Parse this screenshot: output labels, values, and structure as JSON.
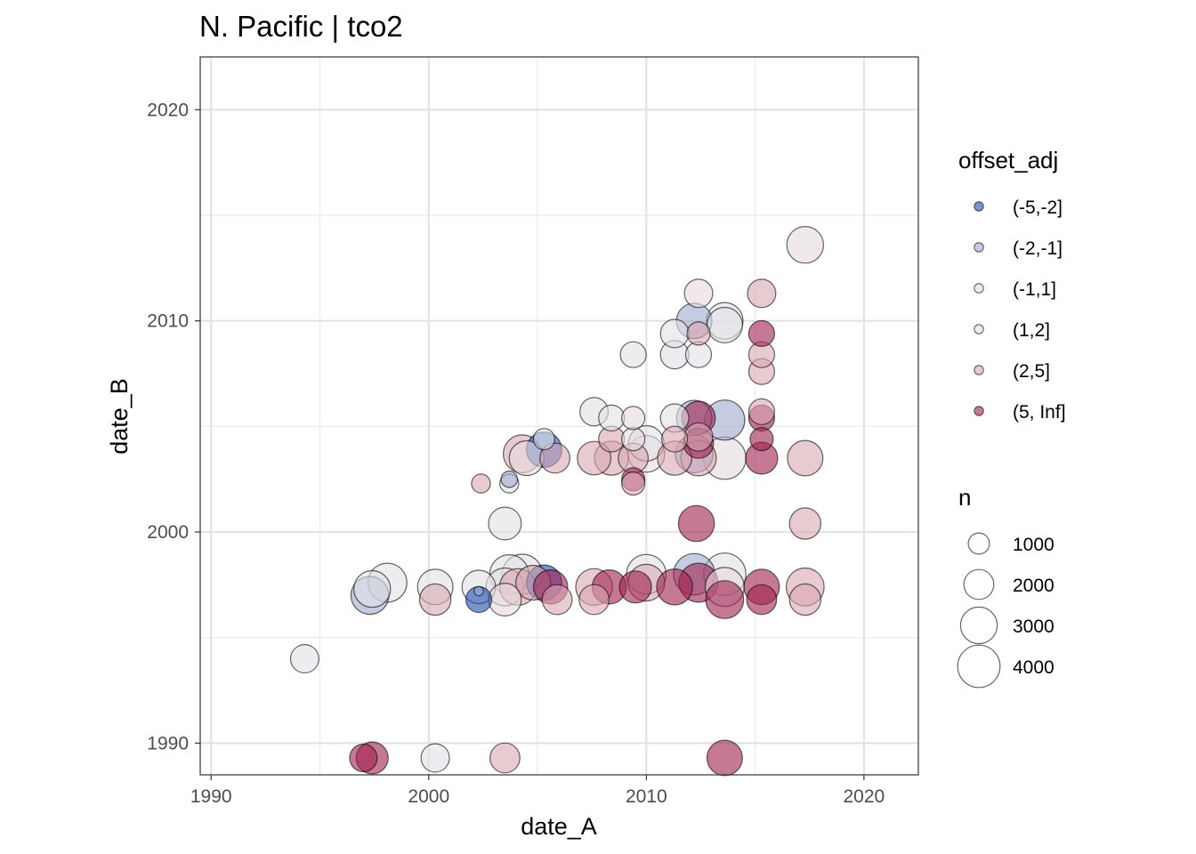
{
  "chart_data": {
    "type": "scatter",
    "title": "N. Pacific | tco2",
    "xlabel": "date_A",
    "ylabel": "date_B",
    "xlim": [
      1989.5,
      2022.5
    ],
    "ylim": [
      1988.5,
      2022.5
    ],
    "x_ticks": [
      1990,
      2000,
      2010,
      2020
    ],
    "y_ticks": [
      1990,
      2000,
      2010,
      2020
    ],
    "x_tick_labels": [
      "1990",
      "2000",
      "2010",
      "2020"
    ],
    "y_tick_labels": [
      "1990",
      "2000",
      "2010",
      "2020"
    ],
    "grid": true,
    "legend_color": {
      "title": "offset_adj",
      "position": "right",
      "items": [
        {
          "label": "(-5,-2]",
          "color": "#1f4fb0"
        },
        {
          "label": "(-2,-1]",
          "color": "#9ea8cc"
        },
        {
          "label": "(-1,1]",
          "color": "#e1e1e6"
        },
        {
          "label": "(1,2]",
          "color": "#e6dadd"
        },
        {
          "label": "(2,5]",
          "color": "#d9a6b3"
        },
        {
          "label": "(5, Inf]",
          "color": "#a0204f"
        }
      ]
    },
    "legend_size": {
      "title": "n",
      "position": "right",
      "items": [
        {
          "label": "1000",
          "value": 1000
        },
        {
          "label": "2000",
          "value": 2000
        },
        {
          "label": "3000",
          "value": 3000
        },
        {
          "label": "4000",
          "value": 4000
        }
      ]
    },
    "points": [
      {
        "x": 1994.3,
        "y": 1994.0,
        "n": 1800,
        "bin": "(-1,1]"
      },
      {
        "x": 1997.0,
        "y": 1989.3,
        "n": 1700,
        "bin": "(5, Inf]"
      },
      {
        "x": 1997.4,
        "y": 1989.3,
        "n": 2300,
        "bin": "(5, Inf]"
      },
      {
        "x": 2000.3,
        "y": 1989.3,
        "n": 1800,
        "bin": "(-1,1]"
      },
      {
        "x": 2003.5,
        "y": 1989.3,
        "n": 2000,
        "bin": "(2,5]"
      },
      {
        "x": 2013.6,
        "y": 1989.3,
        "n": 2800,
        "bin": "(5, Inf]"
      },
      {
        "x": 1997.3,
        "y": 1997.0,
        "n": 3200,
        "bin": "(-2,-1]"
      },
      {
        "x": 1997.4,
        "y": 1997.3,
        "n": 3000,
        "bin": "(-1,1]"
      },
      {
        "x": 1998.1,
        "y": 1997.6,
        "n": 3400,
        "bin": "(-1,1]"
      },
      {
        "x": 2000.3,
        "y": 1996.8,
        "n": 2200,
        "bin": "(2,5]"
      },
      {
        "x": 2000.3,
        "y": 1997.4,
        "n": 2800,
        "bin": "(-1,1]"
      },
      {
        "x": 2002.3,
        "y": 1996.8,
        "n": 1500,
        "bin": "(-5,-2]"
      },
      {
        "x": 2002.3,
        "y": 1997.2,
        "n": 200,
        "bin": "(-2,-1]"
      },
      {
        "x": 2002.3,
        "y": 1997.4,
        "n": 2500,
        "bin": "(-1,1]"
      },
      {
        "x": 2003.5,
        "y": 1996.8,
        "n": 2400,
        "bin": "(1,2]"
      },
      {
        "x": 2003.5,
        "y": 1997.4,
        "n": 3200,
        "bin": "(1,2]"
      },
      {
        "x": 2003.7,
        "y": 1998.0,
        "n": 3400,
        "bin": "(-1,1]"
      },
      {
        "x": 2004.1,
        "y": 1997.4,
        "n": 3000,
        "bin": "(2,5]"
      },
      {
        "x": 2004.3,
        "y": 1998.0,
        "n": 3600,
        "bin": "(-1,1]"
      },
      {
        "x": 2004.8,
        "y": 1997.6,
        "n": 2700,
        "bin": "(2,5]"
      },
      {
        "x": 2005.3,
        "y": 1997.6,
        "n": 2800,
        "bin": "(-5,-2]"
      },
      {
        "x": 2005.6,
        "y": 1997.4,
        "n": 2600,
        "bin": "(5, Inf]"
      },
      {
        "x": 2005.9,
        "y": 1996.8,
        "n": 2000,
        "bin": "(2,5]"
      },
      {
        "x": 2007.6,
        "y": 1996.8,
        "n": 2000,
        "bin": "(2,5]"
      },
      {
        "x": 2007.6,
        "y": 1997.4,
        "n": 3000,
        "bin": "(2,5]"
      },
      {
        "x": 2008.3,
        "y": 1997.4,
        "n": 2600,
        "bin": "(5, Inf]"
      },
      {
        "x": 2009.5,
        "y": 1997.4,
        "n": 2300,
        "bin": "(5, Inf]"
      },
      {
        "x": 2010.0,
        "y": 1997.6,
        "n": 3000,
        "bin": "(2,5]"
      },
      {
        "x": 2010.0,
        "y": 1998.0,
        "n": 3500,
        "bin": "(-1,1]"
      },
      {
        "x": 2011.3,
        "y": 1997.4,
        "n": 2900,
        "bin": "(5, Inf]"
      },
      {
        "x": 2012.2,
        "y": 1998.0,
        "n": 3800,
        "bin": "(-2,-1]"
      },
      {
        "x": 2012.4,
        "y": 1997.6,
        "n": 3400,
        "bin": "(5, Inf]"
      },
      {
        "x": 2013.6,
        "y": 1998.0,
        "n": 4000,
        "bin": "(-1,1]"
      },
      {
        "x": 2013.6,
        "y": 1997.4,
        "n": 3400,
        "bin": "(1,2]"
      },
      {
        "x": 2013.6,
        "y": 1996.8,
        "n": 3200,
        "bin": "(5, Inf]"
      },
      {
        "x": 2015.3,
        "y": 1996.8,
        "n": 2000,
        "bin": "(5, Inf]"
      },
      {
        "x": 2015.3,
        "y": 1997.4,
        "n": 2800,
        "bin": "(5, Inf]"
      },
      {
        "x": 2017.3,
        "y": 1996.8,
        "n": 2200,
        "bin": "(2,5]"
      },
      {
        "x": 2017.3,
        "y": 1997.4,
        "n": 3200,
        "bin": "(2,5]"
      },
      {
        "x": 2003.5,
        "y": 2000.4,
        "n": 2400,
        "bin": "(-1,1]"
      },
      {
        "x": 2012.3,
        "y": 2000.4,
        "n": 2900,
        "bin": "(5, Inf]"
      },
      {
        "x": 2017.3,
        "y": 2000.4,
        "n": 2200,
        "bin": "(2,5]"
      },
      {
        "x": 2002.4,
        "y": 2002.3,
        "n": 800,
        "bin": "(2,5]"
      },
      {
        "x": 2003.7,
        "y": 2002.5,
        "n": 600,
        "bin": "(-2,-1]"
      },
      {
        "x": 2003.7,
        "y": 2002.3,
        "n": 800,
        "bin": "(-1,1]"
      },
      {
        "x": 2004.3,
        "y": 2003.7,
        "n": 3200,
        "bin": "(2,5]"
      },
      {
        "x": 2004.5,
        "y": 2003.5,
        "n": 2700,
        "bin": "(1,2]"
      },
      {
        "x": 2005.3,
        "y": 2003.9,
        "n": 2800,
        "bin": "(-5,-2]"
      },
      {
        "x": 2005.3,
        "y": 2004.4,
        "n": 1000,
        "bin": "(-1,1]"
      },
      {
        "x": 2005.8,
        "y": 2003.5,
        "n": 2000,
        "bin": "(2,5]"
      },
      {
        "x": 2007.6,
        "y": 2003.5,
        "n": 2500,
        "bin": "(2,5]"
      },
      {
        "x": 2008.4,
        "y": 2003.5,
        "n": 2600,
        "bin": "(2,5]"
      },
      {
        "x": 2008.4,
        "y": 2004.4,
        "n": 1500,
        "bin": "(2,5]"
      },
      {
        "x": 2009.4,
        "y": 2004.4,
        "n": 1200,
        "bin": "(1,2]"
      },
      {
        "x": 2009.4,
        "y": 2003.5,
        "n": 2000,
        "bin": "(2,5]"
      },
      {
        "x": 2009.4,
        "y": 2002.5,
        "n": 1200,
        "bin": "(5, Inf]"
      },
      {
        "x": 2009.4,
        "y": 2002.3,
        "n": 1200,
        "bin": "(2,5]"
      },
      {
        "x": 2010.0,
        "y": 2003.7,
        "n": 3000,
        "bin": "(1,2]"
      },
      {
        "x": 2010.0,
        "y": 2004.2,
        "n": 2800,
        "bin": "(-1,1]"
      },
      {
        "x": 2011.3,
        "y": 2003.5,
        "n": 2600,
        "bin": "(2,5]"
      },
      {
        "x": 2011.3,
        "y": 2004.4,
        "n": 1500,
        "bin": "(2,5]"
      },
      {
        "x": 2012.2,
        "y": 2003.7,
        "n": 3200,
        "bin": "(-2,-1]"
      },
      {
        "x": 2012.4,
        "y": 2004.2,
        "n": 2000,
        "bin": "(5, Inf]"
      },
      {
        "x": 2012.4,
        "y": 2004.5,
        "n": 1800,
        "bin": "(2,5]"
      },
      {
        "x": 2012.4,
        "y": 2003.5,
        "n": 2800,
        "bin": "(2,5]"
      },
      {
        "x": 2012.2,
        "y": 2005.4,
        "n": 2800,
        "bin": "(-2,-1]"
      },
      {
        "x": 2012.4,
        "y": 2005.4,
        "n": 2500,
        "bin": "(5, Inf]"
      },
      {
        "x": 2013.6,
        "y": 2005.3,
        "n": 3600,
        "bin": "(-2,-1]"
      },
      {
        "x": 2013.6,
        "y": 2003.5,
        "n": 4000,
        "bin": "(1,2]"
      },
      {
        "x": 2015.3,
        "y": 2003.5,
        "n": 2300,
        "bin": "(5, Inf]"
      },
      {
        "x": 2015.3,
        "y": 2004.4,
        "n": 1200,
        "bin": "(5, Inf]"
      },
      {
        "x": 2015.3,
        "y": 2005.4,
        "n": 1500,
        "bin": "(5, Inf]"
      },
      {
        "x": 2015.3,
        "y": 2005.7,
        "n": 1500,
        "bin": "(2,5]"
      },
      {
        "x": 2017.3,
        "y": 2003.5,
        "n": 2800,
        "bin": "(2,5]"
      },
      {
        "x": 2007.6,
        "y": 2005.7,
        "n": 1800,
        "bin": "(-1,1]"
      },
      {
        "x": 2008.4,
        "y": 2005.4,
        "n": 1500,
        "bin": "(-1,1]"
      },
      {
        "x": 2009.4,
        "y": 2005.4,
        "n": 1200,
        "bin": "(1,2]"
      },
      {
        "x": 2011.3,
        "y": 2005.4,
        "n": 1800,
        "bin": "(-1,1]"
      },
      {
        "x": 2009.4,
        "y": 2008.4,
        "n": 1500,
        "bin": "(-1,1]"
      },
      {
        "x": 2011.3,
        "y": 2008.4,
        "n": 1800,
        "bin": "(-1,1]"
      },
      {
        "x": 2012.4,
        "y": 2008.4,
        "n": 1500,
        "bin": "(-1,1]"
      },
      {
        "x": 2011.3,
        "y": 2009.4,
        "n": 1800,
        "bin": "(-1,1]"
      },
      {
        "x": 2012.4,
        "y": 2009.4,
        "n": 1200,
        "bin": "(2,5]"
      },
      {
        "x": 2012.2,
        "y": 2010.0,
        "n": 2800,
        "bin": "(-2,-1]"
      },
      {
        "x": 2013.6,
        "y": 2009.8,
        "n": 2800,
        "bin": "(-1,1]"
      },
      {
        "x": 2013.6,
        "y": 2010.0,
        "n": 3000,
        "bin": "(-1,1]"
      },
      {
        "x": 2012.4,
        "y": 2011.3,
        "n": 1800,
        "bin": "(1,2]"
      },
      {
        "x": 2015.3,
        "y": 2007.6,
        "n": 1500,
        "bin": "(2,5]"
      },
      {
        "x": 2015.3,
        "y": 2008.4,
        "n": 1500,
        "bin": "(2,5]"
      },
      {
        "x": 2015.3,
        "y": 2009.4,
        "n": 1500,
        "bin": "(5, Inf]"
      },
      {
        "x": 2015.3,
        "y": 2011.3,
        "n": 1800,
        "bin": "(2,5]"
      },
      {
        "x": 2017.3,
        "y": 2013.6,
        "n": 3000,
        "bin": "(1,2]"
      }
    ]
  }
}
